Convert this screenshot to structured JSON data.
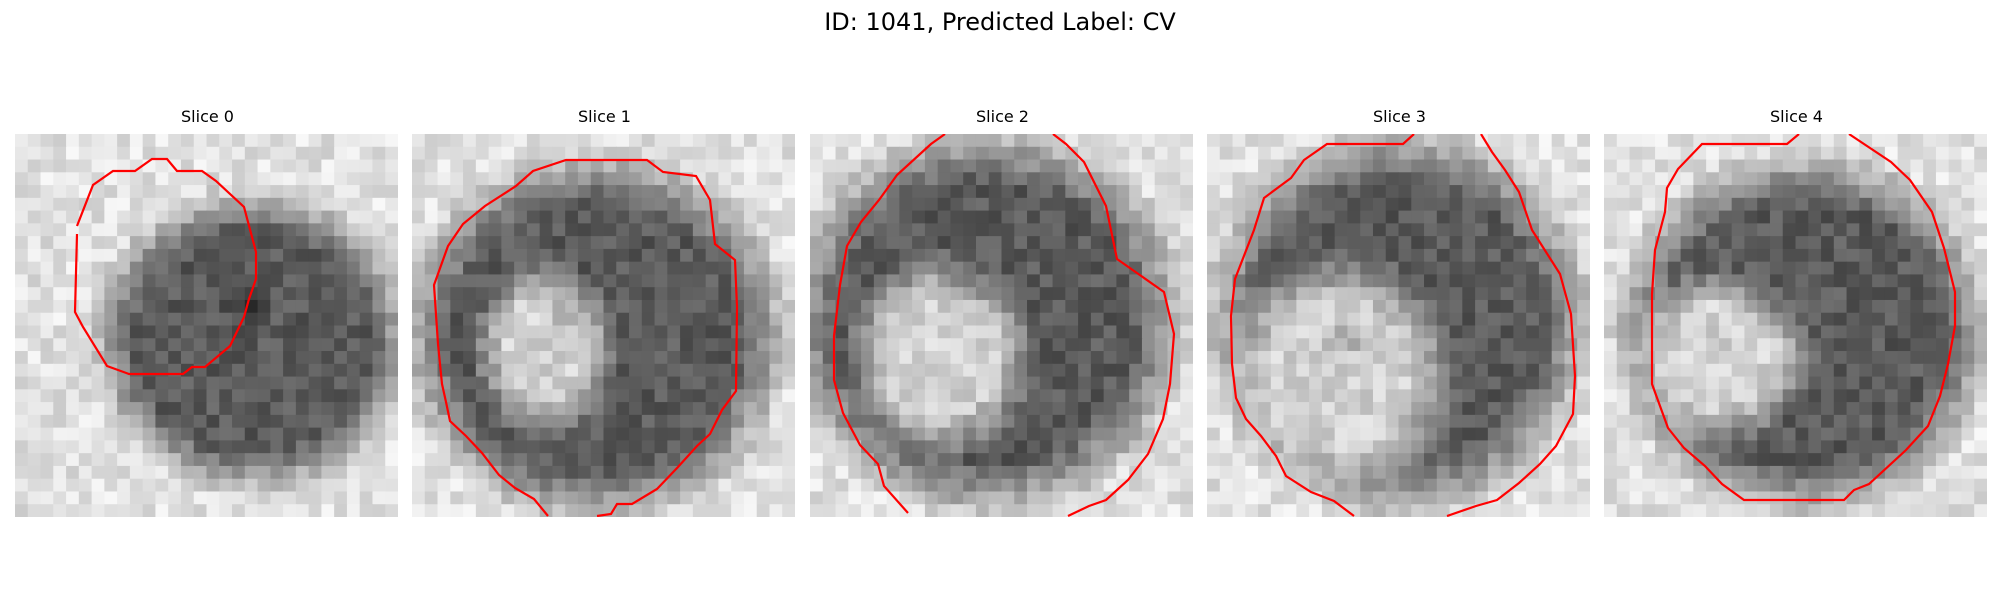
{
  "figure": {
    "title": "ID: 1041, Predicted Label: CV"
  },
  "slices": [
    {
      "title": "Slice 0",
      "blob": [
        0.62,
        0.54,
        0.38,
        0.36
      ],
      "lumen": null,
      "dark_spot": [
        0.62,
        0.44
      ]
    },
    {
      "title": "Slice 1",
      "blob": [
        0.48,
        0.53,
        0.46,
        0.44
      ],
      "lumen": [
        0.35,
        0.56,
        0.2,
        0.24
      ],
      "dark_spot": [
        0.4,
        0.46
      ]
    },
    {
      "title": "Slice 2",
      "blob": [
        0.46,
        0.49,
        0.48,
        0.46
      ],
      "lumen": [
        0.34,
        0.58,
        0.26,
        0.28
      ],
      "dark_spot": [
        0.4,
        0.42
      ]
    },
    {
      "title": "Slice 3",
      "blob": [
        0.5,
        0.49,
        0.46,
        0.46
      ],
      "lumen": [
        0.34,
        0.63,
        0.34,
        0.33
      ],
      "dark_spot": [
        0.37,
        0.53
      ]
    },
    {
      "title": "Slice 4",
      "blob": [
        0.52,
        0.52,
        0.45,
        0.43
      ],
      "lumen": [
        0.3,
        0.58,
        0.26,
        0.24
      ],
      "dark_spot": [
        0.4,
        0.43
      ]
    }
  ],
  "colors": {
    "contour": "#ff0000",
    "background": "#ffffff"
  }
}
